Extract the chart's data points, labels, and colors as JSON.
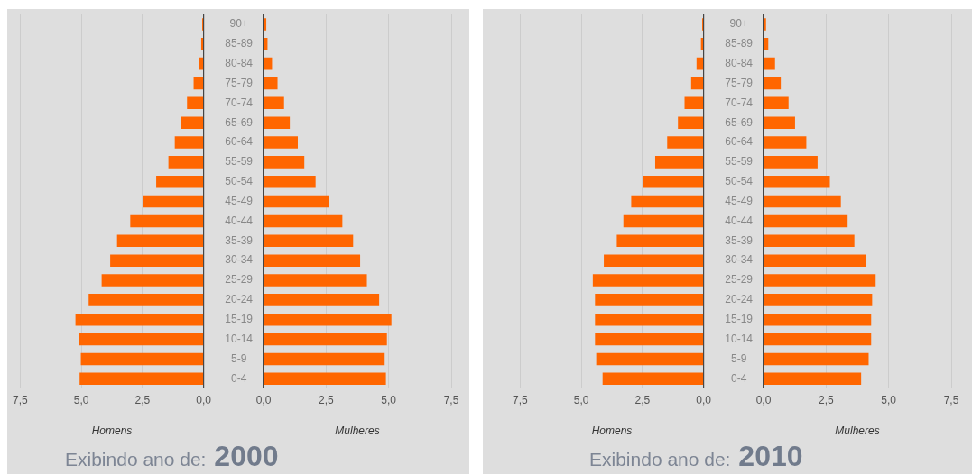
{
  "chart_data": [
    {
      "type": "bar",
      "orientation": "horizontal",
      "categories": [
        null,
        null,
        null,
        null,
        null,
        null,
        null,
        null,
        null,
        null,
        null,
        null,
        null,
        null,
        null,
        null,
        null,
        null,
        null
      ],
      "values": [
        0.06,
        0.1,
        0.19,
        0.41,
        0.68,
        0.91,
        1.18,
        1.44,
        1.94,
        2.47,
        3.0,
        3.54,
        3.82,
        4.17,
        4.7,
        5.24,
        5.1,
        5.02,
        5.07
      ],
      "color": "#ff6600",
      "xlim": [
        7.5,
        0
      ],
      "xticks": [
        {
          "value": 7.5,
          "label": "7,5"
        },
        {
          "value": 5,
          "label": "5,0"
        },
        {
          "value": 2.5,
          "label": "2,5"
        },
        {
          "value": 0,
          "label": "0,0"
        }
      ],
      "xlabel": "Homens",
      "grid": "x",
      "tick_labels": "x",
      "annotations": [
        "Exibindo ano de:",
        "2000"
      ]
    },
    {
      "type": "bar",
      "orientation": "horizontal",
      "categories": [
        "90+",
        "85-89",
        "80-84",
        "75-79",
        "70-74",
        "65-69",
        "60-64",
        "55-59",
        "50-54",
        "45-49",
        "40-44",
        "35-39",
        "30-34",
        "25-29",
        "20-24",
        "15-19",
        "10-14",
        "5-9",
        "0-4"
      ],
      "values": [
        0.11,
        0.16,
        0.34,
        0.56,
        0.82,
        1.05,
        1.37,
        1.63,
        2.08,
        2.6,
        3.15,
        3.58,
        3.86,
        4.13,
        4.62,
        5.11,
        4.93,
        4.84,
        4.89
      ],
      "color": "#ff6600",
      "xlim": [
        0,
        7.5
      ],
      "xticks": [
        {
          "value": 0,
          "label": "0,0"
        },
        {
          "value": 2.5,
          "label": "2,5"
        },
        {
          "value": 5,
          "label": "5,0"
        },
        {
          "value": 7.5,
          "label": "7,5"
        }
      ],
      "xlabel": "Mulheres",
      "grid": "x"
    },
    {
      "type": "bar",
      "orientation": "horizontal",
      "categories": [
        null,
        null,
        null,
        null,
        null,
        null,
        null,
        null,
        null,
        null,
        null,
        null,
        null,
        null,
        null,
        null,
        null,
        null,
        null
      ],
      "values": [
        0.06,
        0.11,
        0.29,
        0.51,
        0.78,
        1.05,
        1.49,
        1.98,
        2.48,
        2.96,
        3.28,
        3.55,
        4.08,
        4.53,
        4.44,
        4.44,
        4.44,
        4.39,
        4.13
      ],
      "color": "#ff6600",
      "xlim": [
        7.5,
        0
      ],
      "xticks": [
        {
          "value": 7.5,
          "label": "7,5"
        },
        {
          "value": 5,
          "label": "5,0"
        },
        {
          "value": 2.5,
          "label": "2,5"
        },
        {
          "value": 0,
          "label": "0,0"
        }
      ],
      "xlabel": "Homens",
      "grid": "x",
      "tick_labels": "x",
      "annotations": [
        "Exibindo ano de:",
        "2010"
      ]
    },
    {
      "type": "bar",
      "orientation": "horizontal",
      "categories": [
        "90+",
        "85-89",
        "80-84",
        "75-79",
        "70-74",
        "65-69",
        "60-64",
        "55-59",
        "50-54",
        "45-49",
        "40-44",
        "35-39",
        "30-34",
        "25-29",
        "20-24",
        "15-19",
        "10-14",
        "5-9",
        "0-4"
      ],
      "values": [
        0.1,
        0.19,
        0.46,
        0.69,
        1.0,
        1.26,
        1.71,
        2.16,
        2.65,
        3.09,
        3.36,
        3.63,
        4.08,
        4.48,
        4.34,
        4.3,
        4.3,
        4.2,
        3.9
      ],
      "color": "#ff6600",
      "xlim": [
        0,
        7.5
      ],
      "xticks": [
        {
          "value": 0,
          "label": "0,0"
        },
        {
          "value": 2.5,
          "label": "2,5"
        },
        {
          "value": 5,
          "label": "5,0"
        },
        {
          "value": 7.5,
          "label": "7,5"
        }
      ],
      "xlabel": "Mulheres",
      "grid": "x"
    }
  ]
}
